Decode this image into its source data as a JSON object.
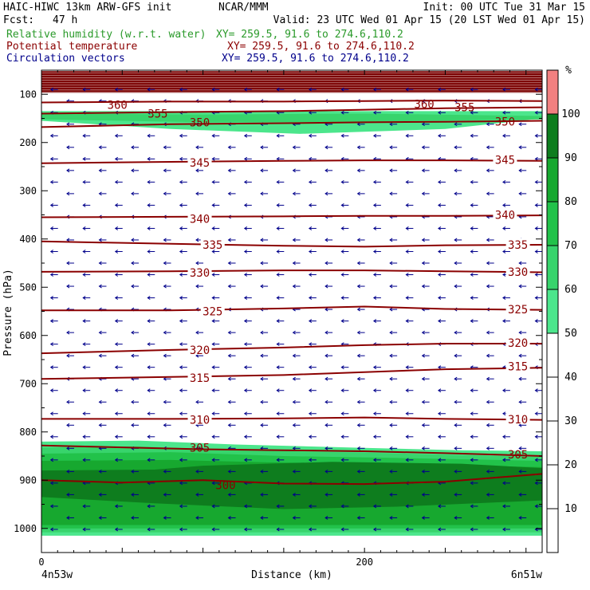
{
  "header": {
    "model": "HAIC-HIWC 13km ARW-GFS init",
    "center": "NCAR/MMM",
    "init": "Init: 00 UTC Tue 31 Mar 15",
    "fcst_label": "Fcst:",
    "fcst_value": "47 h",
    "valid": "Valid: 23 UTC Wed 01 Apr 15 (20 LST Wed 01 Apr 15)",
    "fields": [
      {
        "name": "Relative humidity (w.r.t. water)",
        "xy": "XY= 259.5, 91.6 to 274.6,110.2",
        "color": "#2a9a2a"
      },
      {
        "name": "Potential temperature",
        "xy": "XY= 259.5, 91.6 to 274.6,110.2",
        "color": "#8b0000"
      },
      {
        "name": "Circulation vectors",
        "xy": "XY= 259.5, 91.6 to 274.6,110.2",
        "color": "#00008b"
      }
    ]
  },
  "chart_data": {
    "type": "heatmap",
    "xlabel": "Distance (km)",
    "ylabel": "Pressure (hPa)",
    "xlim": [
      0,
      310
    ],
    "ylim": [
      1050,
      50
    ],
    "x_ticks": [
      0,
      200
    ],
    "x_minor_step": 50,
    "y_ticks": [
      100,
      200,
      300,
      400,
      500,
      600,
      700,
      800,
      900,
      1000
    ],
    "endpoints": {
      "left": "4n53w",
      "right": "6n51w"
    },
    "colorbar": {
      "unit": "%",
      "levels": [
        10,
        20,
        30,
        40,
        50,
        60,
        70,
        80,
        90,
        100
      ],
      "fills": [
        {
          "from": 0,
          "to": 50,
          "color": "#ffffff"
        },
        {
          "from": 50,
          "to": 60,
          "color": "#4ce68c"
        },
        {
          "from": 60,
          "to": 70,
          "color": "#38d46c"
        },
        {
          "from": 70,
          "to": 80,
          "color": "#22c24a"
        },
        {
          "from": 80,
          "to": 90,
          "color": "#17a82f"
        },
        {
          "from": 90,
          "to": 100,
          "color": "#0e7d1e"
        },
        {
          "from": 100,
          "to": 110,
          "color": "#f28080"
        }
      ]
    },
    "rh_regions": [
      {
        "level": 100,
        "color": "#7b0000",
        "top": [
          [
            0,
            52
          ],
          [
            310,
            52
          ]
        ],
        "bottom": [
          [
            0,
            97
          ],
          [
            310,
            97
          ]
        ]
      },
      {
        "level": 50,
        "color": "#4ce68c",
        "top": [
          [
            0,
            135
          ],
          [
            310,
            135
          ]
        ],
        "bottom": [
          [
            0,
            155
          ],
          [
            80,
            172
          ],
          [
            160,
            182
          ],
          [
            250,
            172
          ],
          [
            310,
            150
          ]
        ]
      },
      {
        "level": 60,
        "color": "#38d46c",
        "top": [
          [
            0,
            140
          ],
          [
            100,
            142
          ],
          [
            200,
            140
          ],
          [
            310,
            145
          ]
        ],
        "bottom": [
          [
            0,
            152
          ],
          [
            100,
            158
          ],
          [
            200,
            157
          ],
          [
            310,
            152
          ]
        ]
      },
      {
        "level": 50,
        "color": "#4ce68c",
        "top": [
          [
            0,
            820
          ],
          [
            60,
            818
          ],
          [
            120,
            826
          ],
          [
            200,
            833
          ],
          [
            260,
            838
          ],
          [
            310,
            840
          ]
        ],
        "bottom": [
          [
            0,
            1015
          ],
          [
            310,
            1015
          ]
        ]
      },
      {
        "level": 60,
        "color": "#38d46c",
        "top": [
          [
            0,
            832
          ],
          [
            60,
            830
          ],
          [
            120,
            838
          ],
          [
            200,
            843
          ],
          [
            260,
            848
          ],
          [
            310,
            852
          ]
        ],
        "bottom": [
          [
            0,
            1008
          ],
          [
            310,
            1008
          ]
        ]
      },
      {
        "level": 70,
        "color": "#22c24a",
        "top": [
          [
            0,
            845
          ],
          [
            80,
            842
          ],
          [
            150,
            850
          ],
          [
            220,
            854
          ],
          [
            310,
            860
          ]
        ],
        "bottom": [
          [
            0,
            1000
          ],
          [
            310,
            1000
          ]
        ]
      },
      {
        "level": 80,
        "color": "#17a82f",
        "top": [
          [
            0,
            860
          ],
          [
            80,
            858
          ],
          [
            140,
            863
          ],
          [
            220,
            867
          ],
          [
            310,
            873
          ]
        ],
        "bottom": [
          [
            0,
            993
          ],
          [
            310,
            993
          ]
        ]
      },
      {
        "level": 90,
        "color": "#0e7d1e",
        "top": [
          [
            0,
            880
          ],
          [
            70,
            878
          ],
          [
            100,
            870
          ],
          [
            180,
            862
          ],
          [
            260,
            866
          ],
          [
            310,
            875
          ]
        ],
        "bottom": [
          [
            0,
            935
          ],
          [
            70,
            948
          ],
          [
            150,
            960
          ],
          [
            220,
            955
          ],
          [
            310,
            942
          ]
        ]
      }
    ],
    "theta_contours": [
      {
        "value": 300,
        "points": [
          [
            0,
            900
          ],
          [
            50,
            905
          ],
          [
            100,
            900
          ],
          [
            150,
            907
          ],
          [
            200,
            908
          ],
          [
            250,
            903
          ],
          [
            310,
            887
          ]
        ]
      },
      {
        "value": 305,
        "points": [
          [
            0,
            828
          ],
          [
            50,
            832
          ],
          [
            100,
            836
          ],
          [
            150,
            838
          ],
          [
            200,
            840
          ],
          [
            250,
            844
          ],
          [
            310,
            850
          ]
        ]
      },
      {
        "value": 310,
        "points": [
          [
            0,
            773
          ],
          [
            80,
            773
          ],
          [
            150,
            772
          ],
          [
            200,
            770
          ],
          [
            250,
            773
          ],
          [
            310,
            775
          ]
        ]
      },
      {
        "value": 315,
        "points": [
          [
            0,
            690
          ],
          [
            80,
            686
          ],
          [
            150,
            682
          ],
          [
            200,
            676
          ],
          [
            250,
            670
          ],
          [
            310,
            667
          ]
        ]
      },
      {
        "value": 320,
        "points": [
          [
            0,
            637
          ],
          [
            80,
            630
          ],
          [
            150,
            625
          ],
          [
            200,
            620
          ],
          [
            250,
            617
          ],
          [
            310,
            617
          ]
        ]
      },
      {
        "value": 325,
        "points": [
          [
            0,
            548
          ],
          [
            80,
            548
          ],
          [
            150,
            544
          ],
          [
            200,
            540
          ],
          [
            250,
            545
          ],
          [
            310,
            547
          ]
        ]
      },
      {
        "value": 330,
        "points": [
          [
            0,
            468
          ],
          [
            80,
            467
          ],
          [
            150,
            465
          ],
          [
            200,
            465
          ],
          [
            250,
            467
          ],
          [
            310,
            469
          ]
        ]
      },
      {
        "value": 335,
        "points": [
          [
            0,
            405
          ],
          [
            80,
            410
          ],
          [
            150,
            414
          ],
          [
            200,
            416
          ],
          [
            250,
            413
          ],
          [
            310,
            412
          ]
        ]
      },
      {
        "value": 340,
        "points": [
          [
            0,
            355
          ],
          [
            80,
            354
          ],
          [
            150,
            353
          ],
          [
            200,
            352
          ],
          [
            250,
            352
          ],
          [
            310,
            351
          ]
        ]
      },
      {
        "value": 345,
        "points": [
          [
            0,
            243
          ],
          [
            80,
            240
          ],
          [
            150,
            238
          ],
          [
            200,
            237
          ],
          [
            250,
            237
          ],
          [
            310,
            238
          ]
        ]
      },
      {
        "value": 350,
        "points": [
          [
            0,
            168
          ],
          [
            80,
            162
          ],
          [
            150,
            160
          ],
          [
            200,
            158
          ],
          [
            250,
            157
          ],
          [
            310,
            155
          ]
        ]
      },
      {
        "value": 355,
        "points": [
          [
            0,
            140
          ],
          [
            80,
            137
          ],
          [
            150,
            135
          ],
          [
            200,
            132
          ],
          [
            250,
            129
          ],
          [
            310,
            127
          ]
        ]
      },
      {
        "value": 360,
        "points": [
          [
            0,
            117
          ],
          [
            80,
            115
          ],
          [
            150,
            115
          ],
          [
            200,
            114
          ],
          [
            250,
            113
          ],
          [
            310,
            114
          ]
        ]
      }
    ],
    "theta_labels": [
      {
        "value": 360,
        "x": 47,
        "p": 122
      },
      {
        "value": 355,
        "x": 72,
        "p": 140
      },
      {
        "value": 350,
        "x": 98,
        "p": 158
      },
      {
        "value": 345,
        "x": 98,
        "p": 242
      },
      {
        "value": 340,
        "x": 98,
        "p": 358
      },
      {
        "value": 335,
        "x": 106,
        "p": 412
      },
      {
        "value": 330,
        "x": 98,
        "p": 470
      },
      {
        "value": 325,
        "x": 106,
        "p": 550
      },
      {
        "value": 320,
        "x": 98,
        "p": 630
      },
      {
        "value": 315,
        "x": 98,
        "p": 688
      },
      {
        "value": 310,
        "x": 98,
        "p": 775
      },
      {
        "value": 305,
        "x": 98,
        "p": 833
      },
      {
        "value": 300,
        "x": 114,
        "p": 910
      },
      {
        "value": 360,
        "x": 237,
        "p": 120
      },
      {
        "value": 355,
        "x": 262,
        "p": 127
      },
      {
        "value": 350,
        "x": 287,
        "p": 157
      },
      {
        "value": 345,
        "x": 287,
        "p": 236
      },
      {
        "value": 340,
        "x": 287,
        "p": 350
      },
      {
        "value": 335,
        "x": 295,
        "p": 412
      },
      {
        "value": 330,
        "x": 295,
        "p": 468
      },
      {
        "value": 325,
        "x": 295,
        "p": 546
      },
      {
        "value": 320,
        "x": 295,
        "p": 615
      },
      {
        "value": 315,
        "x": 295,
        "p": 664
      },
      {
        "value": 310,
        "x": 295,
        "p": 774
      },
      {
        "value": 305,
        "x": 295,
        "p": 847
      }
    ],
    "vector_grid": {
      "x_start": 8,
      "x_step": 20,
      "p_start": 90,
      "p_step": 24,
      "p_end": 1015,
      "direction": "westward",
      "color": "#00008b"
    }
  }
}
